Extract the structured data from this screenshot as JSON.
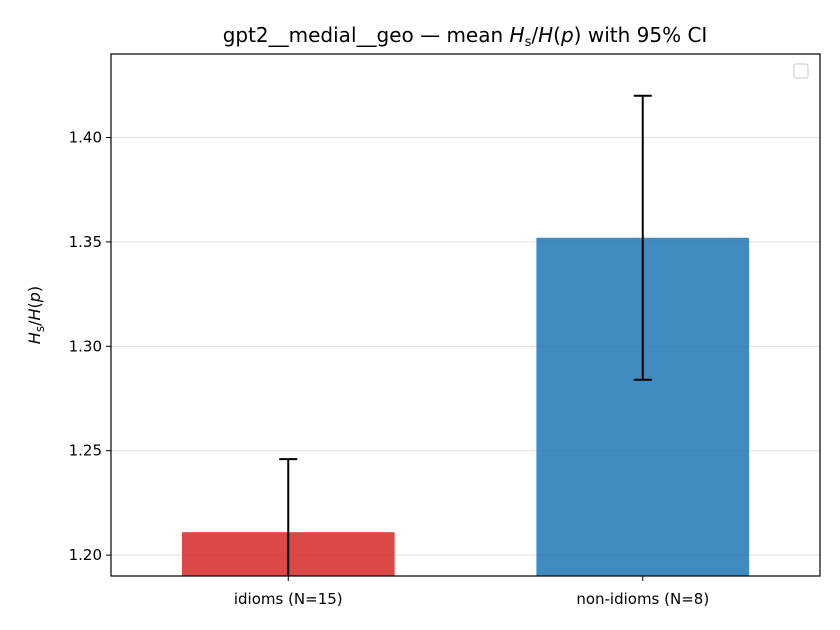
{
  "chart_data": {
    "type": "bar",
    "title_prefix": "gpt2__medial__geo — mean ",
    "title_suffix": " with 95% CI",
    "metric": {
      "H": "H",
      "sub": "s",
      "slash": "/",
      "Hp": "H",
      "open": "(",
      "p": "p",
      "close": ")"
    },
    "categories": [
      "idioms (N=15)",
      "non-idioms (N=8)"
    ],
    "values": [
      1.211,
      1.352
    ],
    "ci_low": [
      1.176,
      1.284
    ],
    "ci_high": [
      1.246,
      1.42
    ],
    "colors": [
      "#d62728",
      "#1f77b4"
    ],
    "ylim": [
      1.19,
      1.44
    ],
    "yticks": [
      "1.20",
      "1.25",
      "1.30",
      "1.35",
      "1.40"
    ],
    "grid": true,
    "legend": "top-right, empty"
  }
}
